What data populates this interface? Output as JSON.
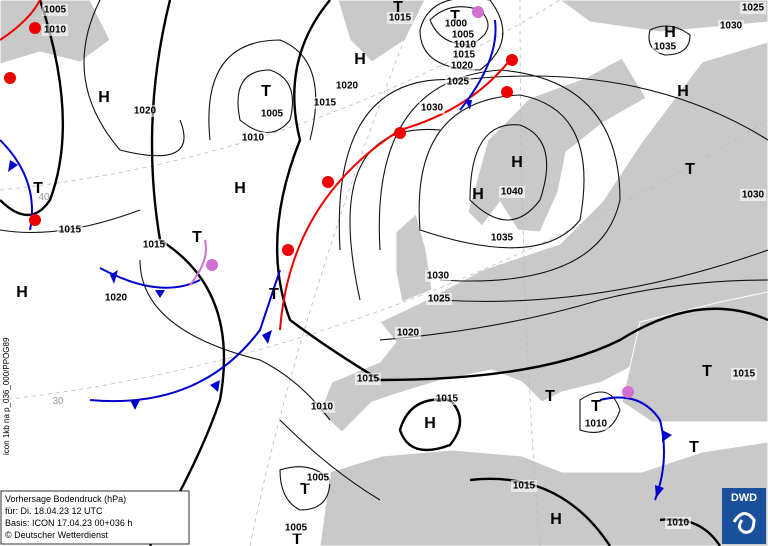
{
  "info_box": {
    "lines": [
      "Vorhersage Bodendruck (hPa)",
      "für:  Di. 18.04.23  12 UTC",
      "Basis: ICON  17.04.23 00+036 h",
      "© Deutscher Wetterdienst"
    ]
  },
  "side_label": "icon 1kb na p_036_000/PPOG89",
  "logo": "DWD",
  "grid_labels": [
    "40",
    "30"
  ],
  "pressure_centers": [
    "T",
    "T",
    "H",
    "H",
    "H",
    "T",
    "H",
    "H",
    "T",
    "T",
    "H",
    "H",
    "T",
    "H",
    "T",
    "T",
    "T",
    "T",
    "H",
    "T",
    "T",
    "H",
    "T"
  ],
  "isobar_labels": [
    "1005",
    "1010",
    "1015",
    "1000",
    "1005",
    "1010",
    "1015",
    "1020",
    "1025",
    "1035",
    "1030",
    "1025",
    "1020",
    "1005",
    "1010",
    "1020",
    "1015",
    "1030",
    "1040",
    "1035",
    "1030",
    "1025",
    "1020",
    "1015",
    "1015",
    "1020",
    "1030",
    "1015",
    "1010",
    "1015",
    "1010",
    "1005",
    "1015",
    "1005",
    "1010",
    "1015"
  ]
}
